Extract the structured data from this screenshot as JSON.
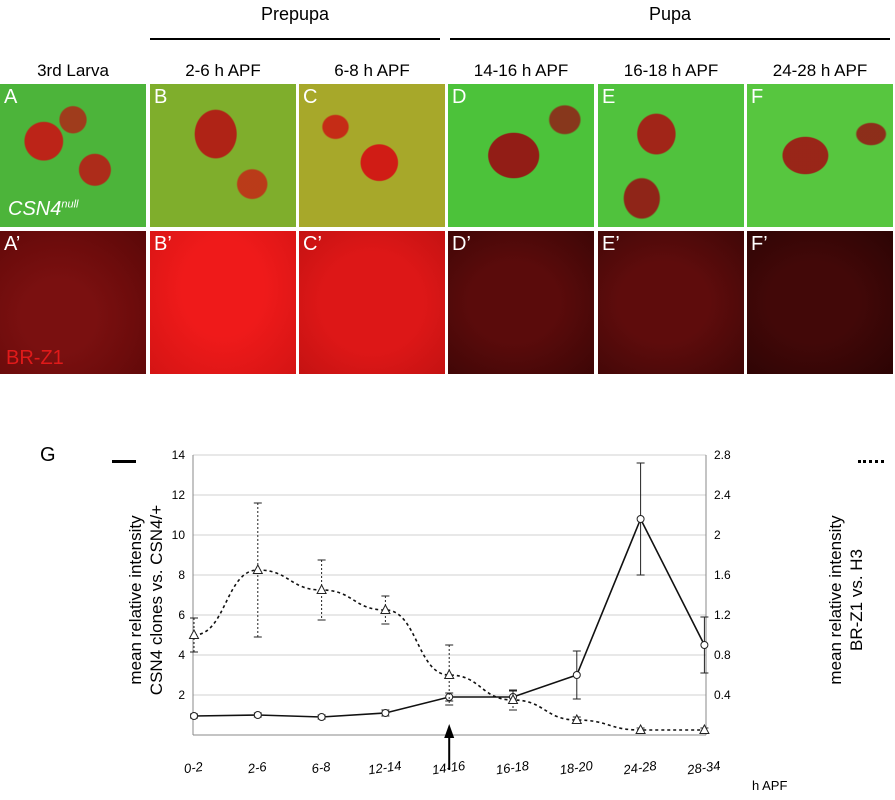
{
  "figure": {
    "stages": [
      {
        "label": "Prepupa"
      },
      {
        "label": "Pupa"
      }
    ],
    "columns": [
      {
        "label": "3rd Larva"
      },
      {
        "label": "2-6 h APF"
      },
      {
        "label": "6-8 h APF"
      },
      {
        "label": "14-16 h APF"
      },
      {
        "label": "16-18 h APF"
      },
      {
        "label": "24-28 h APF"
      }
    ],
    "top_row_letters": [
      "A",
      "B",
      "C",
      "D",
      "E",
      "F"
    ],
    "bottom_row_letters": [
      "A’",
      "B’",
      "C’",
      "D’",
      "E’",
      "F’"
    ],
    "top_row_label": {
      "text": "CSN4",
      "sup": "null"
    },
    "bottom_row_label": "BR-Z1",
    "panel_colors": {
      "green": "#4cb43a",
      "red": "#e01a1a"
    }
  },
  "graph": {
    "letter": "G",
    "left_legend": "solid",
    "right_legend": "dotted"
  },
  "chart_data": {
    "type": "line",
    "xlabel": "h APF",
    "categories": [
      "0-2",
      "2-6",
      "6-8",
      "12-14",
      "14-16",
      "16-18",
      "18-20",
      "24-28",
      "28-34"
    ],
    "y_left": {
      "label_line1": "mean relative  intensity",
      "label_line2": "CSN4 clones vs. CSN4/+",
      "ylim": [
        0,
        14
      ],
      "ticks": [
        "2",
        "4",
        "6",
        "8",
        "10",
        "12",
        "14"
      ]
    },
    "y_right": {
      "label_line1": "mean relative intensity",
      "label_line2": "BR-Z1 vs. H3",
      "ylim": [
        0,
        2.8
      ],
      "ticks": [
        "0.4",
        "0.8",
        "1.2",
        "1.6",
        "2",
        "2.4",
        "2.8"
      ]
    },
    "grid": true,
    "series": [
      {
        "style": "solid",
        "axis": "left",
        "marker": "circle",
        "values": [
          0.95,
          1.0,
          0.9,
          1.1,
          1.9,
          1.9,
          3.0,
          10.8,
          4.5
        ],
        "err": [
          0.1,
          0.1,
          0.1,
          0.15,
          0.2,
          0.3,
          1.2,
          2.8,
          1.4
        ]
      },
      {
        "style": "dotted",
        "axis": "right",
        "marker": "triangle",
        "values": [
          1.0,
          1.65,
          1.45,
          1.25,
          0.6,
          0.35,
          0.15,
          0.05,
          0.05
        ],
        "err": [
          0.17,
          0.67,
          0.3,
          0.14,
          0.3,
          0.1,
          0.03,
          0.02,
          0.02
        ]
      }
    ],
    "annotation": "arrow at 14-16"
  }
}
